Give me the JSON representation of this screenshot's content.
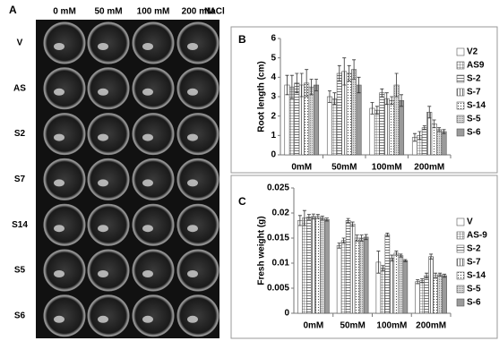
{
  "photo_panel": {
    "panel_label": "A",
    "column_labels": [
      "0 mM",
      "50 mM",
      "100 mM",
      "200 mM"
    ],
    "salt_label": "NaCl",
    "row_labels": [
      "V",
      "AS",
      "S2",
      "S7",
      "S14",
      "S5",
      "S6"
    ]
  },
  "chart_data": [
    {
      "type": "bar",
      "panel_label": "B",
      "y_label": "Root length (cm)",
      "categories": [
        "0mM",
        "50mM",
        "100mM",
        "200mM"
      ],
      "ylim": [
        0,
        6
      ],
      "yticks": [
        0,
        1,
        2,
        3,
        4,
        5,
        6
      ],
      "series": [
        {
          "name": "V2",
          "pattern": "blank",
          "values": [
            3.6,
            3.0,
            2.4,
            0.9
          ],
          "errors": [
            0.5,
            0.3,
            0.3,
            0.2
          ]
        },
        {
          "name": "AS9",
          "pattern": "grid",
          "values": [
            3.5,
            2.9,
            2.3,
            1.0
          ],
          "errors": [
            0.6,
            0.3,
            0.2,
            0.2
          ]
        },
        {
          "name": "S-2",
          "pattern": "hlines",
          "values": [
            3.7,
            4.2,
            3.2,
            1.4
          ],
          "errors": [
            0.5,
            0.4,
            0.2,
            0.1
          ]
        },
        {
          "name": "S-7",
          "pattern": "vlines",
          "values": [
            3.6,
            4.3,
            2.9,
            2.2
          ],
          "errors": [
            0.6,
            0.7,
            0.3,
            0.3
          ]
        },
        {
          "name": "S-14",
          "pattern": "dots",
          "values": [
            3.7,
            4.2,
            2.8,
            1.6
          ],
          "errors": [
            0.7,
            0.4,
            0.2,
            0.2
          ]
        },
        {
          "name": "S-5",
          "pattern": "fine",
          "values": [
            3.5,
            4.4,
            3.6,
            1.3
          ],
          "errors": [
            0.4,
            0.5,
            0.6,
            0.1
          ]
        },
        {
          "name": "S-6",
          "pattern": "gray",
          "values": [
            3.6,
            3.6,
            2.8,
            1.2
          ],
          "errors": [
            0.3,
            0.4,
            0.3,
            0.1
          ]
        }
      ]
    },
    {
      "type": "bar",
      "panel_label": "C",
      "y_label": "Fresh weight (g)",
      "categories": [
        "0mM",
        "50mM",
        "100mM",
        "200mM"
      ],
      "ylim": [
        0,
        0.025
      ],
      "yticks": [
        0,
        0.005,
        0.01,
        0.015,
        0.02,
        0.025
      ],
      "series": [
        {
          "name": "V",
          "pattern": "blank",
          "values": [
            0.0185,
            0.0135,
            0.0102,
            0.0063
          ],
          "errors": [
            0.001,
            0.0005,
            0.0022,
            0.0004
          ]
        },
        {
          "name": "AS-9",
          "pattern": "grid",
          "values": [
            0.019,
            0.0145,
            0.009,
            0.0065
          ],
          "errors": [
            0.0015,
            0.0005,
            0.0005,
            0.0004
          ]
        },
        {
          "name": "S-2",
          "pattern": "hlines",
          "values": [
            0.0192,
            0.0185,
            0.0157,
            0.0075
          ],
          "errors": [
            0.0005,
            0.0004,
            0.0003,
            0.0005
          ]
        },
        {
          "name": "S-7",
          "pattern": "vlines",
          "values": [
            0.0193,
            0.0178,
            0.011,
            0.0113
          ],
          "errors": [
            0.0005,
            0.0004,
            0.0006,
            0.0005
          ]
        },
        {
          "name": "S-14",
          "pattern": "dots",
          "values": [
            0.0193,
            0.015,
            0.012,
            0.0075
          ],
          "errors": [
            0.0004,
            0.0006,
            0.0004,
            0.0005
          ]
        },
        {
          "name": "S-5",
          "pattern": "fine",
          "values": [
            0.019,
            0.015,
            0.0115,
            0.0077
          ],
          "errors": [
            0.0004,
            0.0006,
            0.0003,
            0.0003
          ]
        },
        {
          "name": "S-6",
          "pattern": "gray",
          "values": [
            0.0187,
            0.0152,
            0.0105,
            0.0075
          ],
          "errors": [
            0.0003,
            0.0005,
            0.0002,
            0.0003
          ]
        }
      ]
    }
  ]
}
